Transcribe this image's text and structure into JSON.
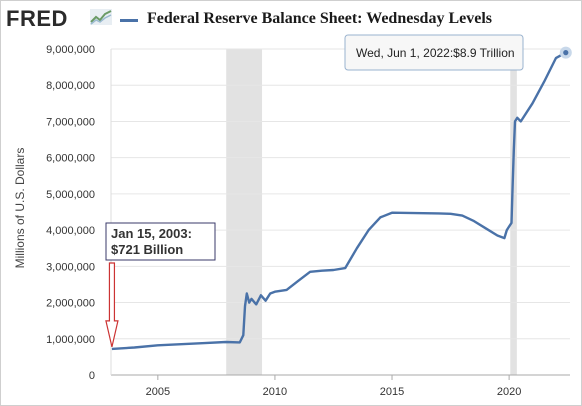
{
  "header": {
    "logo": "FRED",
    "title": "Federal Reserve Balance Sheet: Wednesday Levels"
  },
  "colors": {
    "series": "#4a72a8",
    "recession": "#e2e2e2",
    "gridline": "#e6e6e6"
  },
  "chart_data": {
    "type": "line",
    "title": "Federal Reserve Balance Sheet: Wednesday Levels",
    "xlabel": "",
    "ylabel": "Millions of U.S. Dollars",
    "xlim": [
      2003.0,
      2022.6
    ],
    "ylim": [
      0,
      9000000
    ],
    "x_ticks": [
      {
        "label": "2005",
        "value": 2005
      },
      {
        "label": "2010",
        "value": 2010
      },
      {
        "label": "2015",
        "value": 2015
      },
      {
        "label": "2020",
        "value": 2020
      }
    ],
    "y_ticks": [
      {
        "label": "0",
        "value": 0
      },
      {
        "label": "1,000,000",
        "value": 1000000
      },
      {
        "label": "2,000,000",
        "value": 2000000
      },
      {
        "label": "3,000,000",
        "value": 3000000
      },
      {
        "label": "4,000,000",
        "value": 4000000
      },
      {
        "label": "5,000,000",
        "value": 5000000
      },
      {
        "label": "6,000,000",
        "value": 6000000
      },
      {
        "label": "7,000,000",
        "value": 7000000
      },
      {
        "label": "8,000,000",
        "value": 8000000
      },
      {
        "label": "9,000,000",
        "value": 9000000
      }
    ],
    "grid": true,
    "recessions": [
      [
        2007.92,
        2009.45
      ],
      [
        2020.05,
        2020.33
      ]
    ],
    "series": [
      {
        "name": "Federal Reserve Balance Sheet: Wednesday Levels",
        "x": [
          2003.04,
          2004.0,
          2005.0,
          2006.0,
          2007.0,
          2007.9,
          2008.5,
          2008.65,
          2008.72,
          2008.8,
          2008.9,
          2009.0,
          2009.2,
          2009.4,
          2009.6,
          2009.8,
          2010.0,
          2010.5,
          2011.0,
          2011.5,
          2012.0,
          2012.5,
          2013.0,
          2013.5,
          2014.0,
          2014.5,
          2015.0,
          2016.0,
          2017.0,
          2017.5,
          2018.0,
          2018.5,
          2019.0,
          2019.5,
          2019.8,
          2019.9,
          2020.0,
          2020.1,
          2020.15,
          2020.2,
          2020.25,
          2020.35,
          2020.5,
          2021.0,
          2021.5,
          2022.0,
          2022.42
        ],
        "y": [
          721000,
          760000,
          820000,
          850000,
          880000,
          910000,
          900000,
          1100000,
          1900000,
          2250000,
          2000000,
          2100000,
          1950000,
          2200000,
          2050000,
          2250000,
          2300000,
          2350000,
          2600000,
          2850000,
          2880000,
          2900000,
          2950000,
          3500000,
          4000000,
          4350000,
          4480000,
          4470000,
          4460000,
          4450000,
          4400000,
          4250000,
          4050000,
          3850000,
          3780000,
          4000000,
          4100000,
          4200000,
          5200000,
          6200000,
          7000000,
          7100000,
          7000000,
          7500000,
          8100000,
          8750000,
          8900000
        ]
      }
    ],
    "annotations": [
      {
        "line1": "Jan 15, 2003:",
        "line2": "$721 Billion",
        "x": 2003.04,
        "y": 721000
      },
      {
        "text": "Wed, Jun 1, 2022:$8.9 Trillion",
        "x": 2022.42,
        "y": 8900000
      }
    ]
  }
}
